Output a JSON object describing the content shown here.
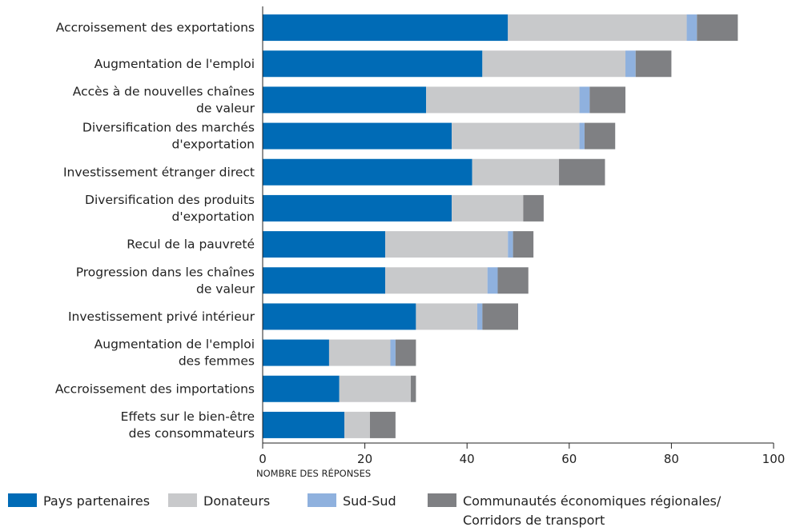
{
  "chart_data": {
    "type": "bar",
    "orientation": "horizontal",
    "stacked": true,
    "categories": [
      [
        "Accroissement des exportations"
      ],
      [
        "Augmentation de l'emploi"
      ],
      [
        "Accès à de nouvelles chaînes",
        "de valeur"
      ],
      [
        "Diversification des marchés",
        "d'exportation"
      ],
      [
        "Investissement étranger direct"
      ],
      [
        "Diversification des produits",
        "d'exportation"
      ],
      [
        "Recul de la pauvreté"
      ],
      [
        "Progression dans les chaînes",
        "de valeur"
      ],
      [
        "Investissement privé intérieur"
      ],
      [
        "Augmentation de l'emploi",
        "des femmes"
      ],
      [
        "Accroissement des importations"
      ],
      [
        "Effets sur le bien-être",
        "des consommateurs"
      ]
    ],
    "series": [
      {
        "name": "Pays partenaires",
        "color": "#006bb6",
        "values": [
          48,
          43,
          32,
          37,
          41,
          37,
          24,
          24,
          30,
          13,
          15,
          16
        ]
      },
      {
        "name": "Donateurs",
        "color": "#c8c9cb",
        "values": [
          35,
          28,
          30,
          25,
          17,
          14,
          24,
          20,
          12,
          12,
          14,
          5
        ]
      },
      {
        "name": "Sud-Sud",
        "color": "#8fb1de",
        "values": [
          2,
          2,
          2,
          1,
          0,
          0,
          1,
          2,
          1,
          1,
          0,
          0
        ]
      },
      {
        "name": [
          "Communautés économiques régionales/",
          "Corridors de transport"
        ],
        "color": "#7f8083",
        "values": [
          8,
          7,
          7,
          6,
          9,
          4,
          4,
          6,
          7,
          4,
          1,
          5
        ]
      }
    ],
    "xlim": [
      0,
      100
    ],
    "xticks": [
      0,
      20,
      40,
      60,
      80,
      100
    ],
    "xlabel": "NOMBRE DES RÉPONSES",
    "title": "",
    "ylabel": "",
    "grid": false,
    "legend": "bottom"
  }
}
